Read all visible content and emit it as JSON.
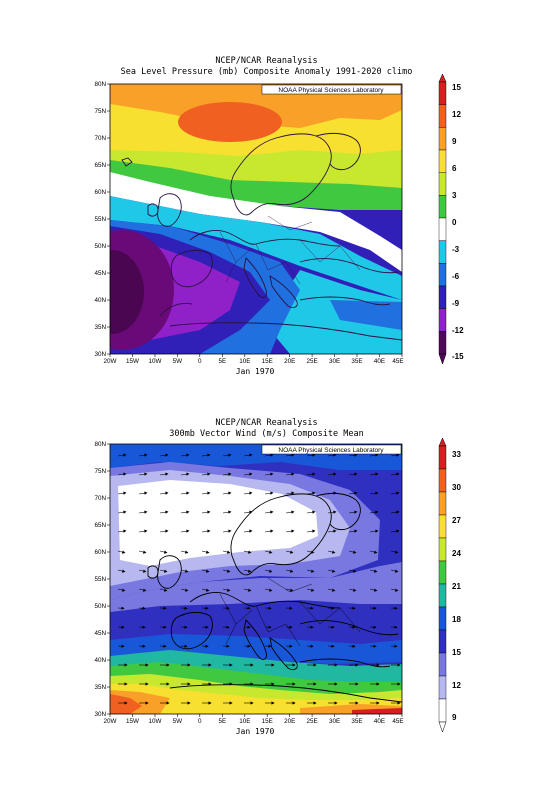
{
  "panels": [
    {
      "title_line1": "NCEP/NCAR Reanalysis",
      "title_line2": "Sea Level Pressure (mb) Composite Anomaly 1991-2020 climo",
      "credit": "NOAA Physical Sciences Laboratory",
      "date": "Jan 1970",
      "lat_labels": [
        "80N",
        "75N",
        "70N",
        "65N",
        "60N",
        "55N",
        "50N",
        "45N",
        "40N",
        "35N",
        "30N"
      ],
      "lon_labels": [
        "20W",
        "15W",
        "10W",
        "5W",
        "0",
        "5E",
        "10E",
        "15E",
        "20E",
        "25E",
        "30E",
        "35E",
        "40E",
        "45E"
      ],
      "colorbar_labels": [
        "15",
        "12",
        "9",
        "6",
        "3",
        "0",
        "-3",
        "-6",
        "-9",
        "-12",
        "-15"
      ],
      "colorbar_colors": [
        "#d42020",
        "#f06020",
        "#f8a028",
        "#f8e030",
        "#c8e830",
        "#40c840",
        "#ffffff",
        "#20c8e8",
        "#2070e0",
        "#3020b8",
        "#9020c8",
        "#500858"
      ]
    },
    {
      "title_line1": "NCEP/NCAR Reanalysis",
      "title_line2": "300mb Vector Wind (m/s) Composite Mean",
      "credit": "NOAA Physical Sciences Laboratory",
      "date": "Jan 1970",
      "lat_labels": [
        "80N",
        "75N",
        "70N",
        "65N",
        "60N",
        "55N",
        "50N",
        "45N",
        "40N",
        "35N",
        "30N"
      ],
      "lon_labels": [
        "20W",
        "15W",
        "10W",
        "5W",
        "0",
        "5E",
        "10E",
        "15E",
        "20E",
        "25E",
        "30E",
        "35E",
        "40E",
        "45E"
      ],
      "colorbar_labels": [
        "33",
        "30",
        "27",
        "24",
        "21",
        "18",
        "15",
        "12",
        "9"
      ],
      "colorbar_colors": [
        "#d42020",
        "#f06020",
        "#f8a028",
        "#f8e030",
        "#c8e830",
        "#40c840",
        "#20b8a0",
        "#1858d8",
        "#3030c0",
        "#7878e0",
        "#b8b8f0",
        "#ffffff"
      ]
    }
  ]
}
